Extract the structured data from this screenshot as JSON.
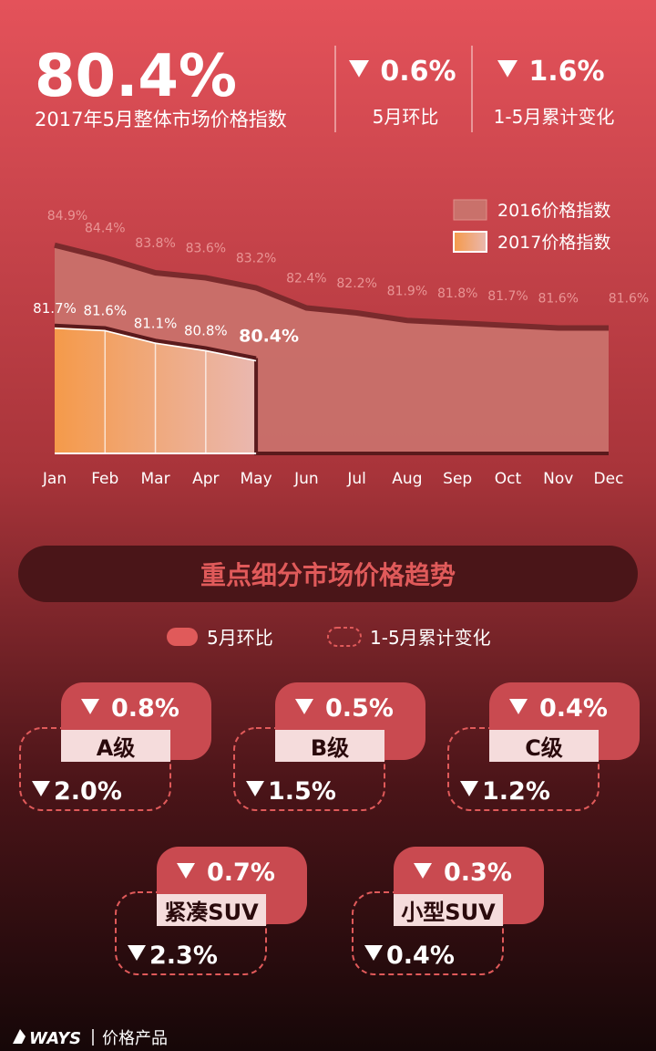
{
  "headline": {
    "value": "80.4%",
    "label": "2017年5月整体市场价格指数",
    "kpis": [
      {
        "value": "0.6%",
        "label": "5月环比"
      },
      {
        "value": "1.6%",
        "label": "1-5月累计变化"
      }
    ]
  },
  "chart_data": {
    "type": "area",
    "categories": [
      "Jan",
      "Feb",
      "Mar",
      "Apr",
      "May",
      "Jun",
      "Jul",
      "Aug",
      "Sep",
      "Oct",
      "Nov",
      "Dec"
    ],
    "series": [
      {
        "name": "2016价格指数",
        "color": "#c9716b",
        "values": [
          84.9,
          84.4,
          83.8,
          83.6,
          83.2,
          82.4,
          82.2,
          81.9,
          81.8,
          81.7,
          81.6,
          81.6
        ],
        "value_labels": [
          "84.9%",
          "84.4%",
          "83.8%",
          "83.6%",
          "83.2%",
          "82.4%",
          "82.2%",
          "81.9%",
          "81.8%",
          "81.7%",
          "81.6%",
          "81.6%"
        ]
      },
      {
        "name": "2017价格指数",
        "color": "#f4a055",
        "values": [
          81.7,
          81.6,
          81.1,
          80.8,
          80.4,
          null,
          null,
          null,
          null,
          null,
          null,
          null
        ],
        "value_labels": [
          "81.7%",
          "81.6%",
          "81.1%",
          "80.8%",
          "80.4%",
          null,
          null,
          null,
          null,
          null,
          null,
          null
        ]
      }
    ],
    "ylim": [
      76.6,
      86
    ]
  },
  "section": {
    "title": "重点细分市场价格趋势",
    "legend": [
      "5月环比",
      "1-5月累计变化"
    ]
  },
  "segments": [
    {
      "name": "A级",
      "mom": "0.8%",
      "cumulative": "2.0%"
    },
    {
      "name": "B级",
      "mom": "0.5%",
      "cumulative": "1.5%"
    },
    {
      "name": "C级",
      "mom": "0.4%",
      "cumulative": "1.2%"
    },
    {
      "name": "紧凑SUV",
      "mom": "0.7%",
      "cumulative": "2.3%"
    },
    {
      "name": "小型SUV",
      "mom": "0.3%",
      "cumulative": "0.4%"
    }
  ],
  "footer": {
    "brand": "WAYS",
    "product": "价格产品"
  }
}
